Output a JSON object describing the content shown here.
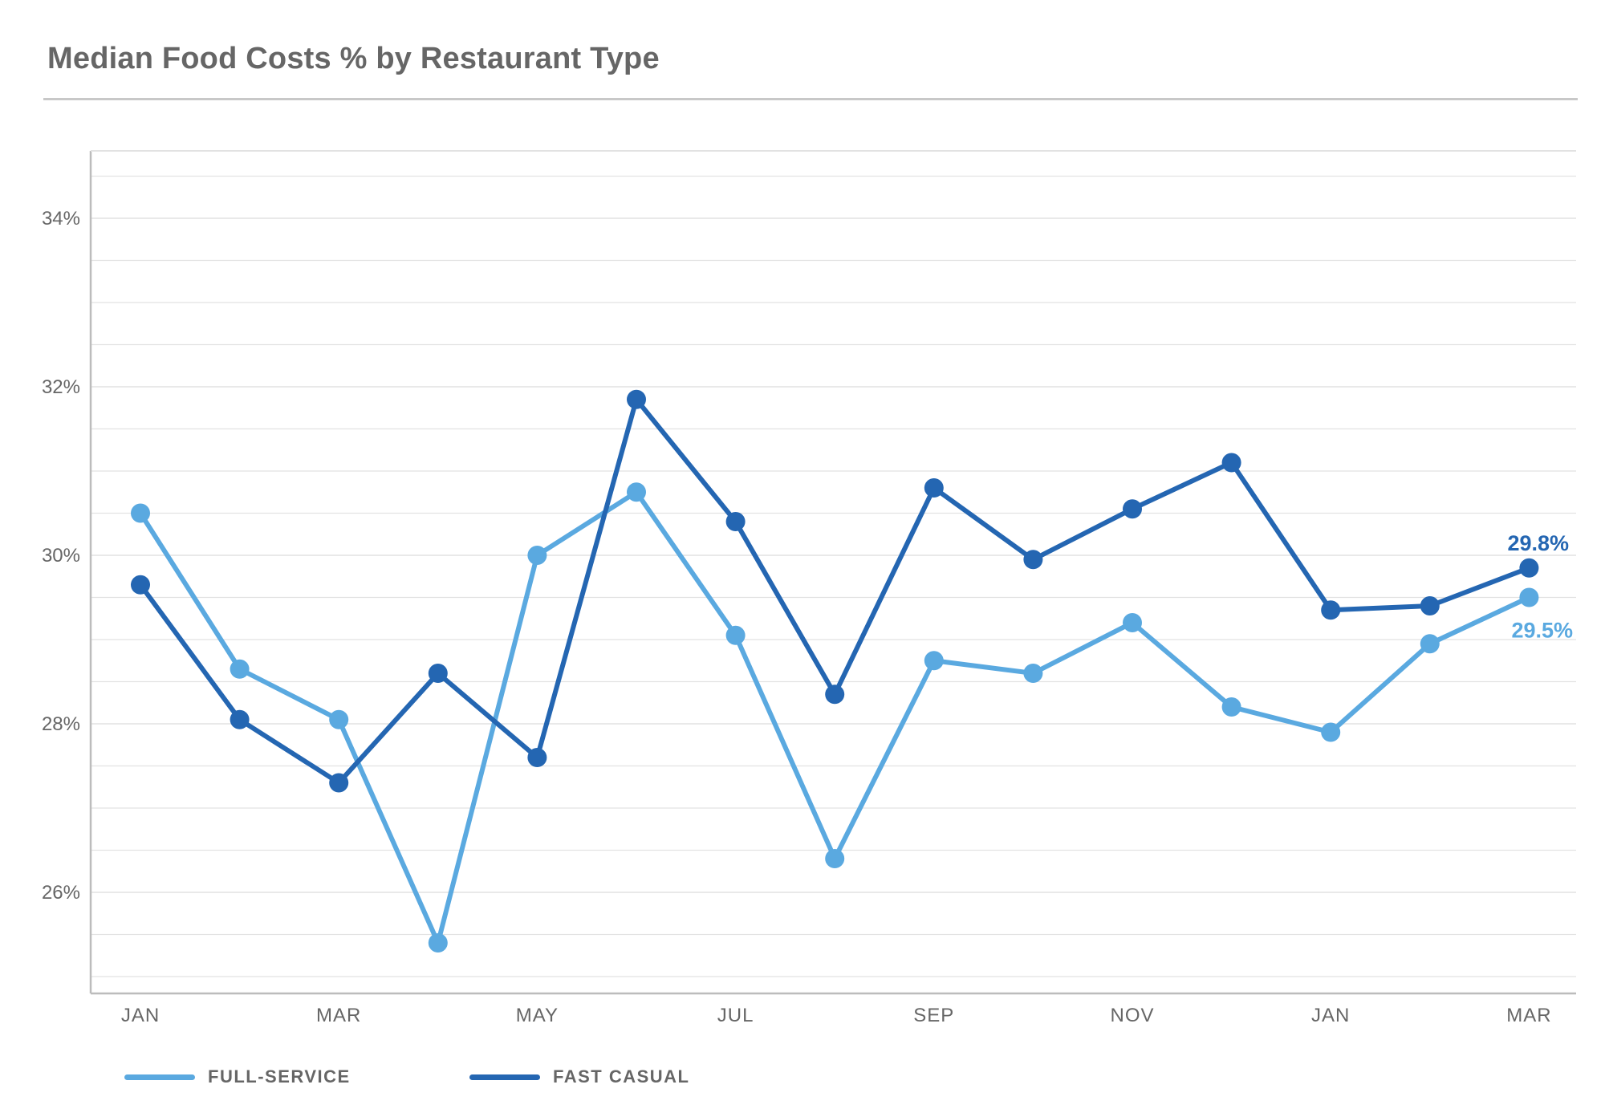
{
  "title": "Median Food Costs % by Restaurant Type",
  "colors": {
    "full_service": "#5aa9e0",
    "fast_casual": "#2466b2",
    "axis": "#bcbcbc",
    "grid": "#e2e2e2",
    "text": "#666666"
  },
  "legend": [
    {
      "label": "FULL-SERVICE",
      "color": "#5aa9e0"
    },
    {
      "label": "FAST CASUAL",
      "color": "#2466b2"
    }
  ],
  "chart_data": {
    "type": "line",
    "title": "Median Food Costs % by Restaurant Type",
    "xlabel": "",
    "ylabel": "",
    "ylim": [
      24.8,
      34.8
    ],
    "y_ticks": [
      26,
      28,
      30,
      32,
      34
    ],
    "y_tick_labels": [
      "26%",
      "28%",
      "30%",
      "32%",
      "34%"
    ],
    "x_tick_labels": [
      "JAN",
      "MAR",
      "MAY",
      "JUL",
      "SEP",
      "NOV",
      "JAN",
      "MAR"
    ],
    "x_tick_positions": [
      0,
      2,
      4,
      6,
      8,
      10,
      12,
      14
    ],
    "series": [
      {
        "name": "FULL-SERVICE",
        "color": "#5aa9e0",
        "values": [
          30.5,
          28.65,
          28.05,
          25.4,
          30.0,
          30.75,
          29.05,
          26.4,
          28.75,
          28.6,
          29.2,
          28.2,
          27.9,
          28.95,
          29.5
        ],
        "end_label": "29.5%"
      },
      {
        "name": "FAST CASUAL",
        "color": "#2466b2",
        "values": [
          29.65,
          28.05,
          27.3,
          28.6,
          27.6,
          31.85,
          30.4,
          28.35,
          30.8,
          29.95,
          30.55,
          31.1,
          29.35,
          29.4,
          29.85
        ],
        "end_label": "29.8%"
      }
    ]
  }
}
